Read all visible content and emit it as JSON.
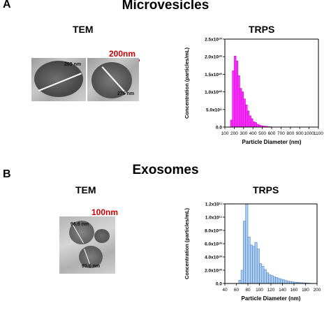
{
  "panels": [
    {
      "letter": "A",
      "title": "Microvesicles",
      "tem": {
        "label": "TEM",
        "scale_bar": "200nm",
        "measurements": [
          "269 nm",
          "276 nm"
        ]
      },
      "trps": {
        "label": "TRPS"
      }
    },
    {
      "letter": "B",
      "title": "Exosomes",
      "tem": {
        "label": "TEM",
        "scale_bar": "100nm",
        "measurements": [
          "96.6 nm",
          "93.6 nm"
        ]
      },
      "trps": {
        "label": "TRPS"
      }
    }
  ],
  "chart_data": [
    {
      "type": "bar",
      "title": "",
      "xlabel": "Particle Diameter (nm)",
      "ylabel": "Concentration (particles/mL)",
      "xlim": [
        100,
        1100
      ],
      "ylim": [
        0,
        25000000000
      ],
      "x_ticks": [
        "100",
        "200",
        "300",
        "400",
        "500",
        "600",
        "700",
        "800",
        "900",
        "1000",
        "1100"
      ],
      "y_ticks": [
        "0.0",
        "5.0x10⁹",
        "1.0x10¹⁰",
        "1.5x10¹⁰",
        "2.0x10¹⁰",
        "2.5x10¹⁰"
      ],
      "bin_width": 20,
      "bin_start": [
        160,
        180,
        200,
        220,
        240,
        260,
        280,
        300,
        320,
        340,
        360,
        380,
        400,
        420,
        440,
        460,
        480,
        500,
        520,
        540,
        560,
        580
      ],
      "values": [
        2000000000,
        16000000000,
        20200000000,
        18800000000,
        14600000000,
        11000000000,
        10000000000,
        8000000000,
        6300000000,
        4600000000,
        3200000000,
        2400000000,
        1500000000,
        1300000000,
        800000000,
        600000000,
        400000000,
        300000000,
        250000000,
        200000000,
        100000000,
        100000000
      ],
      "color": "#ff33ff",
      "edge_color": "#cc00cc",
      "grid": false
    },
    {
      "type": "bar",
      "title": "",
      "xlabel": "Particle Diameter (nm)",
      "ylabel": "Concentration (particles/mL)",
      "xlim": [
        40,
        200
      ],
      "ylim": [
        0,
        120000000000
      ],
      "x_ticks": [
        "40",
        "60",
        "80",
        "100",
        "120",
        "140",
        "160",
        "180",
        "200"
      ],
      "y_ticks": [
        "0.0",
        "2.0x10¹⁰",
        "4.0x10¹⁰",
        "6.0x10¹⁰",
        "8.0x10¹⁰",
        "1.0x10¹¹",
        "1.2x10¹¹"
      ],
      "bin_width": 4,
      "bin_start": [
        64,
        68,
        72,
        76,
        80,
        84,
        88,
        92,
        96,
        100,
        104,
        108,
        112,
        116,
        120,
        124,
        128,
        132,
        136,
        140,
        144,
        148,
        152,
        156,
        160,
        164,
        168,
        172,
        176,
        180,
        184
      ],
      "values": [
        5000000000,
        20000000000,
        94000000000,
        120000000000,
        70000000000,
        58000000000,
        56000000000,
        62000000000,
        52000000000,
        30000000000,
        26000000000,
        21000000000,
        16000000000,
        13000000000,
        12000000000,
        10000000000,
        9000000000,
        7500000000,
        6500000000,
        5500000000,
        4500000000,
        3500000000,
        3000000000,
        2500000000,
        2000000000,
        1800000000,
        1500000000,
        1200000000,
        1000000000,
        800000000,
        600000000
      ],
      "color": "#a9ccf0",
      "edge_color": "#4f81bd",
      "grid": false
    }
  ]
}
